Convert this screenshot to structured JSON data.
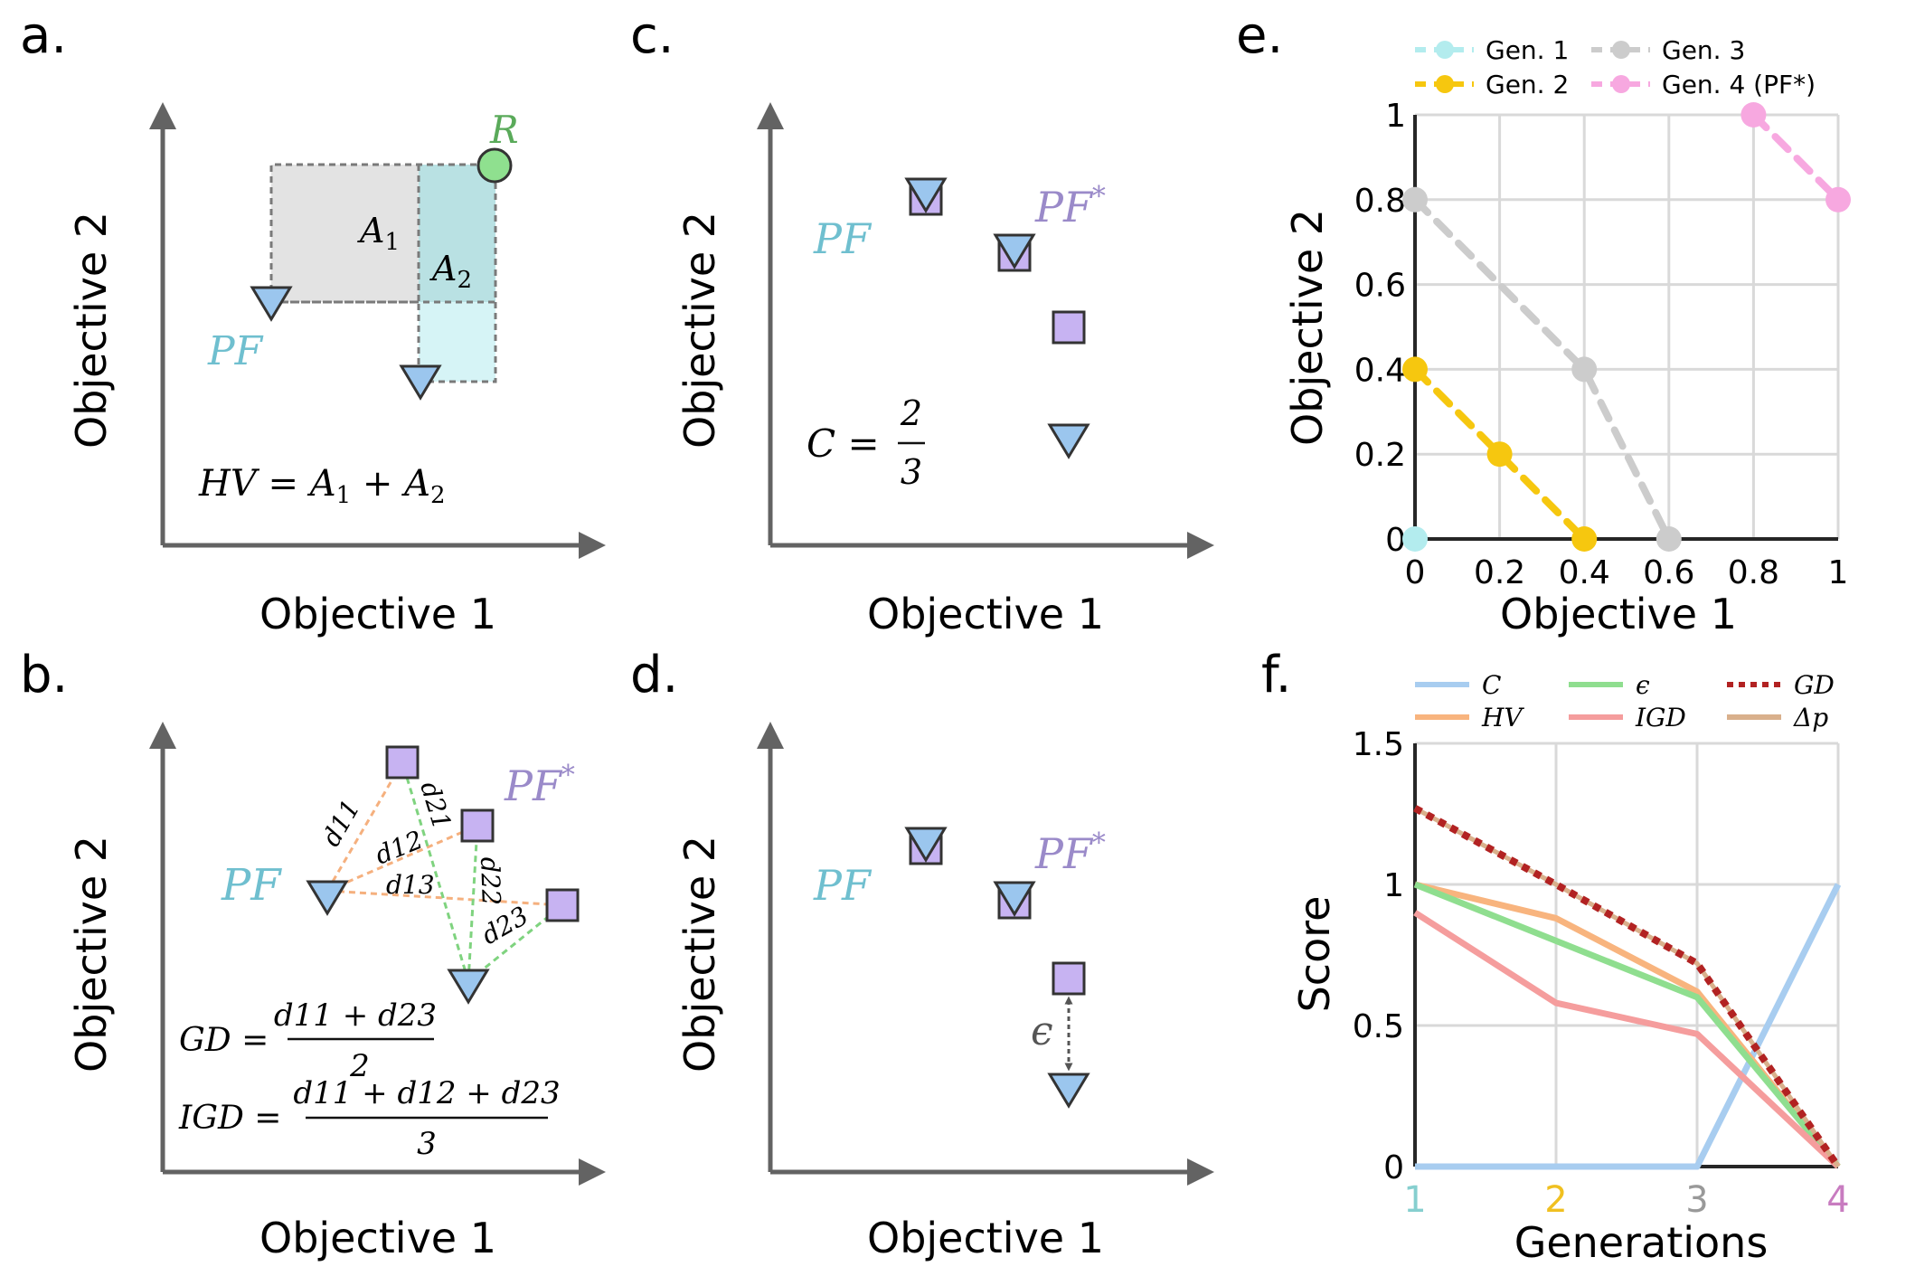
{
  "panels": {
    "a": {
      "label": "a.",
      "xlabel": "Objective 1",
      "ylabel": "Objective 2",
      "ref_label": "R",
      "a1_label": "A",
      "a1_sub": "1",
      "a2_label": "A",
      "a2_sub": "2",
      "pf_label": "PF",
      "formula": {
        "lhs": "HV = A",
        "sub1": "1",
        "plus": " + A",
        "sub2": "2"
      }
    },
    "b": {
      "label": "b.",
      "xlabel": "Objective 1",
      "ylabel": "Objective 2",
      "pf_label": "PF",
      "pfs_label": "PF",
      "pfs_sup": "*",
      "dist_labels": [
        "d11",
        "d12",
        "d13",
        "d21",
        "d22",
        "d23"
      ],
      "gd": {
        "lhs": "GD =",
        "num": "d11 + d23",
        "den": "2"
      },
      "igd": {
        "lhs": "IGD =",
        "num": "d11 + d12 + d23",
        "den": "3"
      }
    },
    "c": {
      "label": "c.",
      "xlabel": "Objective 1",
      "ylabel": "Objective 2",
      "pf_label": "PF",
      "pfs_label": "PF",
      "pfs_sup": "*",
      "formula": {
        "lhs": "C =",
        "num": "2",
        "den": "3"
      }
    },
    "d": {
      "label": "d.",
      "xlabel": "Objective 1",
      "ylabel": "Objective 2",
      "pf_label": "PF",
      "pfs_label": "PF",
      "pfs_sup": "*",
      "eps_label": "ϵ"
    },
    "e": {
      "label": "e.",
      "xlabel": "Objective 1",
      "ylabel": "Objective 2"
    },
    "f": {
      "label": "f.",
      "xlabel": "Generations",
      "ylabel": "Score"
    }
  },
  "chart_data": [
    {
      "panel": "e",
      "type": "line",
      "xlabel": "Objective 1",
      "ylabel": "Objective 2",
      "xlim": [
        0,
        1
      ],
      "ylim": [
        0,
        1
      ],
      "x_ticks": [
        "0",
        "0.2",
        "0.4",
        "0.6",
        "0.8",
        "1"
      ],
      "y_ticks": [
        "0",
        "0.2",
        "0.4",
        "0.6",
        "0.8",
        "1"
      ],
      "grid": true,
      "legend_position": "top",
      "series": [
        {
          "name": "Gen. 1",
          "color": "#b3ecee",
          "points": [
            [
              0,
              0
            ]
          ]
        },
        {
          "name": "Gen. 2",
          "color": "#f6c70f",
          "points": [
            [
              0,
              0.4
            ],
            [
              0.2,
              0.2
            ],
            [
              0.4,
              0
            ]
          ]
        },
        {
          "name": "Gen. 3",
          "color": "#cccccc",
          "points": [
            [
              0,
              0.8
            ],
            [
              0.4,
              0.4
            ],
            [
              0.6,
              0
            ]
          ]
        },
        {
          "name": "Gen. 4 (PF*)",
          "color": "#f7a8e0",
          "points": [
            [
              0.8,
              1
            ],
            [
              1,
              0.8
            ]
          ]
        }
      ]
    },
    {
      "panel": "f",
      "type": "line",
      "xlabel": "Generations",
      "ylabel": "Score",
      "categories": [
        "1",
        "2",
        "3",
        "4"
      ],
      "category_colors": [
        "#86cfcf",
        "#f0c020",
        "#999999",
        "#c87cc0"
      ],
      "ylim": [
        0,
        1.5
      ],
      "y_ticks": [
        "0",
        "0.5",
        "1",
        "1.5"
      ],
      "grid": true,
      "legend_position": "top",
      "series": [
        {
          "name": "C",
          "color": "#a8cdf0",
          "values": [
            0,
            0,
            0,
            1
          ]
        },
        {
          "name": "HV",
          "color": "#f8b47e",
          "values": [
            1,
            0.88,
            0.62,
            0
          ]
        },
        {
          "name": "ϵ",
          "color": "#8fde8f",
          "values": [
            1,
            0.8,
            0.6,
            0
          ]
        },
        {
          "name": "IGD",
          "color": "#f59d9d",
          "values": [
            0.9,
            0.58,
            0.47,
            0
          ]
        },
        {
          "name": "GD",
          "color": "#b22222",
          "values": [
            1.27,
            1,
            0.72,
            0
          ]
        },
        {
          "name": "Δp",
          "color": "#d9b08c",
          "values": [
            1.27,
            1,
            0.72,
            0
          ]
        }
      ]
    }
  ]
}
